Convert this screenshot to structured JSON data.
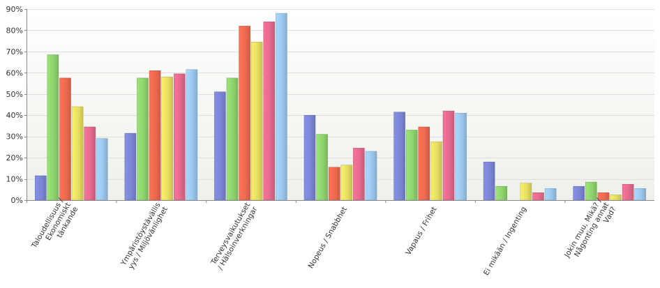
{
  "chart_data": {
    "type": "bar",
    "title": "",
    "xlabel": "",
    "ylabel": "",
    "ylim": [
      0,
      90
    ],
    "y_ticks": [
      "0%",
      "10%",
      "20%",
      "30%",
      "40%",
      "50%",
      "60%",
      "70%",
      "80%",
      "90%"
    ],
    "y_tick_values": [
      0,
      10,
      20,
      30,
      40,
      50,
      60,
      70,
      80,
      90
    ],
    "grid": true,
    "legend": "none",
    "categories": [
      [
        "Taloudellisuus /",
        "Ekonomiskt",
        "tänkande"
      ],
      [
        "Ympäristöystävällis",
        "yys / Miljövänlighet"
      ],
      [
        "Terveysvaikutukset",
        "/ Hälsoinverkningar"
      ],
      [
        "Nopeus / Snabbhet"
      ],
      [
        "Vapaus / Frihet"
      ],
      [
        "Ei mikään / Ingenting"
      ],
      [
        "Jokin muu, Mikä? /",
        "Någonting annat",
        "Vad?"
      ]
    ],
    "series_colors": [
      "#7b86d6",
      "#8fd46e",
      "#ef6a50",
      "#e7df62",
      "#e66b8e",
      "#9cc8ee"
    ],
    "series": [
      {
        "values": [
          11.5,
          31.5,
          51,
          40,
          41.5,
          18,
          6.5
        ]
      },
      {
        "values": [
          68.5,
          57.5,
          57.5,
          31,
          33,
          6.5,
          8.5
        ]
      },
      {
        "values": [
          57.5,
          61,
          82,
          15.5,
          34.5,
          0,
          3.5
        ]
      },
      {
        "values": [
          44,
          58,
          74.5,
          16.5,
          27.5,
          8,
          2.5
        ]
      },
      {
        "values": [
          34.5,
          59.5,
          84,
          24.5,
          42,
          3.5,
          7.5
        ]
      },
      {
        "values": [
          29,
          61.5,
          88,
          23,
          41,
          5.5,
          5.5
        ]
      }
    ]
  }
}
